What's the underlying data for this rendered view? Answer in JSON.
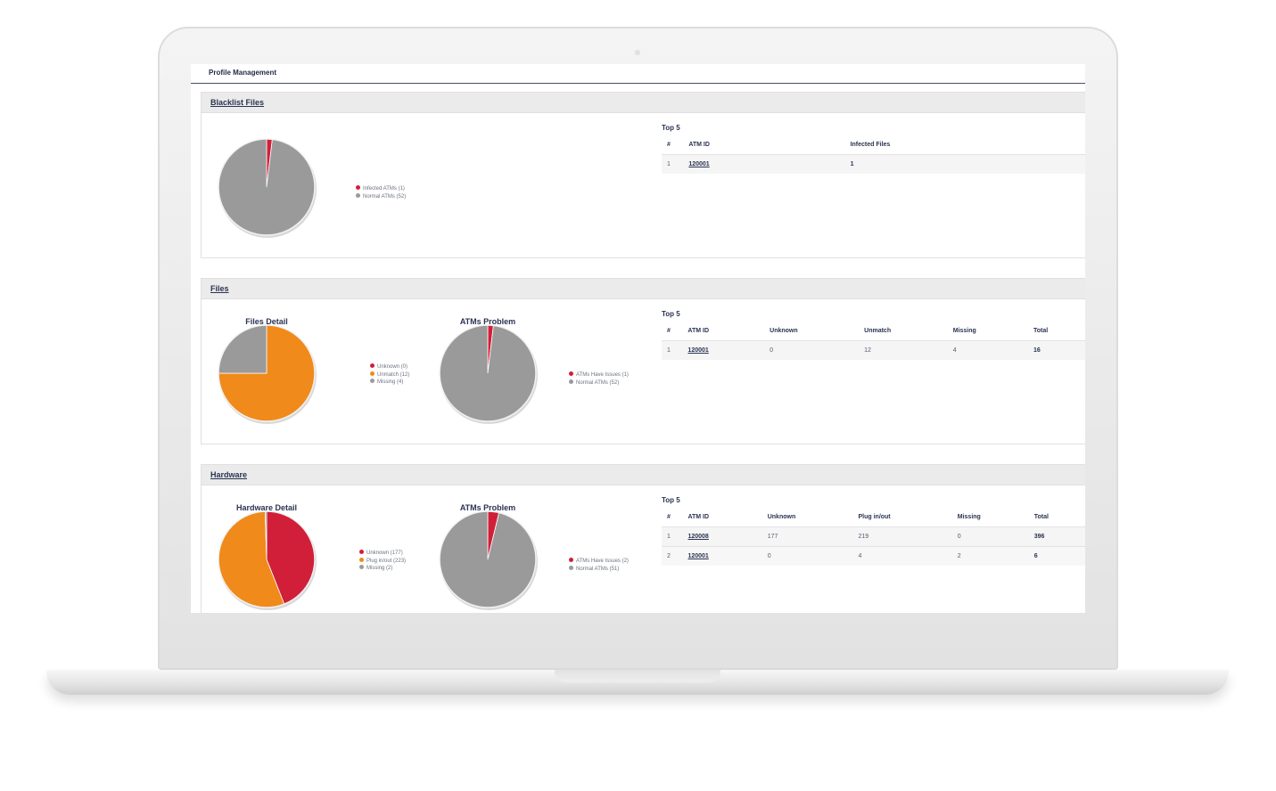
{
  "app": {
    "title": "Profile Management"
  },
  "colors": {
    "infected": "#d11f3a",
    "orange": "#f08a1a",
    "grey": "#9a9a9a"
  },
  "sections": {
    "blacklist": {
      "title": "Blacklist Files",
      "pie": {
        "legend": [
          {
            "label": "Infected ATMs (1)",
            "color": "#d11f3a"
          },
          {
            "label": "Normal ATMs (52)",
            "color": "#9a9a9a"
          }
        ]
      },
      "top5": {
        "title": "Top 5",
        "headers": [
          "#",
          "ATM ID",
          "Infected Files"
        ],
        "rows": [
          [
            "1",
            "120001",
            "1"
          ]
        ]
      }
    },
    "files": {
      "title": "Files",
      "detail_title": "Files Detail",
      "problem_title": "ATMs Problem",
      "detail_legend": [
        {
          "label": "Unknown (0)",
          "color": "#d11f3a"
        },
        {
          "label": "Unmatch (12)",
          "color": "#f08a1a"
        },
        {
          "label": "Missing (4)",
          "color": "#9a9a9a"
        }
      ],
      "problem_legend": [
        {
          "label": "ATMs Have Issues (1)",
          "color": "#d11f3a"
        },
        {
          "label": "Normal ATMs (52)",
          "color": "#9a9a9a"
        }
      ],
      "top5": {
        "title": "Top 5",
        "headers": [
          "#",
          "ATM ID",
          "Unknown",
          "Unmatch",
          "Missing",
          "Total"
        ],
        "rows": [
          [
            "1",
            "120001",
            "0",
            "12",
            "4",
            "16"
          ]
        ]
      }
    },
    "hardware": {
      "title": "Hardware",
      "detail_title": "Hardware Detail",
      "problem_title": "ATMs Problem",
      "detail_legend": [
        {
          "label": "Unknown (177)",
          "color": "#d11f3a"
        },
        {
          "label": "Plug in/out (223)",
          "color": "#f08a1a"
        },
        {
          "label": "Missing (2)",
          "color": "#9a9a9a"
        }
      ],
      "problem_legend": [
        {
          "label": "ATMs Have Issues (2)",
          "color": "#d11f3a"
        },
        {
          "label": "Normal ATMs (51)",
          "color": "#9a9a9a"
        }
      ],
      "top5": {
        "title": "Top 5",
        "headers": [
          "#",
          "ATM ID",
          "Unknown",
          "Plug in/out",
          "Missing",
          "Total"
        ],
        "rows": [
          [
            "1",
            "120008",
            "177",
            "219",
            "0",
            "396"
          ],
          [
            "2",
            "120001",
            "0",
            "4",
            "2",
            "6"
          ]
        ]
      }
    }
  },
  "chart_data": [
    {
      "type": "pie",
      "categories": [
        "Infected ATMs",
        "Normal ATMs"
      ],
      "values": [
        1,
        52
      ],
      "colors": [
        "#d11f3a",
        "#9a9a9a"
      ]
    },
    {
      "type": "pie",
      "title": "Files Detail",
      "categories": [
        "Unknown",
        "Unmatch",
        "Missing"
      ],
      "values": [
        0,
        12,
        4
      ],
      "colors": [
        "#d11f3a",
        "#f08a1a",
        "#9a9a9a"
      ]
    },
    {
      "type": "pie",
      "title": "ATMs Problem",
      "categories": [
        "ATMs Have Issues",
        "Normal ATMs"
      ],
      "values": [
        1,
        52
      ],
      "colors": [
        "#d11f3a",
        "#9a9a9a"
      ]
    },
    {
      "type": "pie",
      "title": "Hardware Detail",
      "categories": [
        "Unknown",
        "Plug in/out",
        "Missing"
      ],
      "values": [
        177,
        223,
        2
      ],
      "colors": [
        "#d11f3a",
        "#f08a1a",
        "#9a9a9a"
      ]
    },
    {
      "type": "pie",
      "title": "ATMs Problem",
      "categories": [
        "ATMs Have Issues",
        "Normal ATMs"
      ],
      "values": [
        2,
        51
      ],
      "colors": [
        "#d11f3a",
        "#9a9a9a"
      ]
    }
  ]
}
